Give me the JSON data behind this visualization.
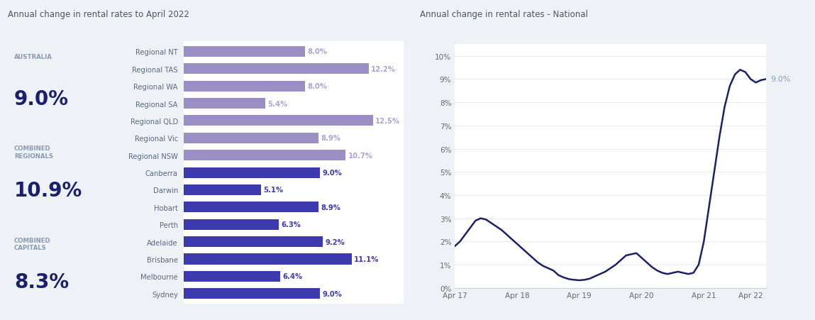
{
  "title_left": "Annual change in rental rates to April 2022",
  "title_right": "Annual change in rental rates - National",
  "bg_color": "#eef2f7",
  "kpi": [
    {
      "label": "AUSTRALIA",
      "value": "9.0%"
    },
    {
      "label": "COMBINED\nREGIONALS",
      "value": "10.9%"
    },
    {
      "label": "COMBINED\nCAPITALS",
      "value": "8.3%"
    }
  ],
  "kpi_label_color": "#8a9bb0",
  "kpi_value_color": "#1a1f6e",
  "bar_categories": [
    "Regional NT",
    "Regional TAS",
    "Regional WA",
    "Regional SA",
    "Regional QLD",
    "Regional Vic",
    "Regional NSW",
    "Canberra",
    "Darwin",
    "Hobart",
    "Perth",
    "Adelaide",
    "Brisbane",
    "Melbourne",
    "Sydney"
  ],
  "bar_values": [
    8.0,
    12.2,
    8.0,
    5.4,
    12.5,
    8.9,
    10.7,
    9.0,
    5.1,
    8.9,
    6.3,
    9.2,
    11.1,
    6.4,
    9.0
  ],
  "bar_colors": [
    "#9b8ec4",
    "#9b8ec4",
    "#9b8ec4",
    "#9b8ec4",
    "#9b8ec4",
    "#9b8ec4",
    "#9b8ec4",
    "#3d3ab0",
    "#3d3ab0",
    "#3d3ab0",
    "#3d3ab0",
    "#3d3ab0",
    "#3d3ab0",
    "#3d3ab0",
    "#3d3ab0"
  ],
  "bar_label_color_regional": "#b0a0d8",
  "bar_label_color_capital": "#3d3ab0",
  "bar_category_color": "#5a6880",
  "line_x": [
    0,
    1,
    2,
    3,
    4,
    5,
    6,
    7,
    8,
    9,
    10,
    11,
    12,
    13,
    14,
    15,
    16,
    17,
    18,
    19,
    20,
    21,
    22,
    23,
    24,
    25,
    26,
    27,
    28,
    29,
    30,
    31,
    32,
    33,
    34,
    35,
    36,
    37,
    38,
    39,
    40,
    41,
    42,
    43,
    44,
    45,
    46,
    47,
    48,
    49,
    50,
    51,
    52,
    53,
    54,
    55,
    56,
    57,
    58,
    59,
    60
  ],
  "line_y": [
    1.8,
    2.0,
    2.3,
    2.6,
    2.9,
    3.0,
    2.95,
    2.8,
    2.65,
    2.5,
    2.3,
    2.1,
    1.9,
    1.7,
    1.5,
    1.3,
    1.1,
    0.95,
    0.85,
    0.75,
    0.55,
    0.45,
    0.38,
    0.35,
    0.33,
    0.35,
    0.4,
    0.5,
    0.6,
    0.7,
    0.85,
    1.0,
    1.2,
    1.4,
    1.45,
    1.5,
    1.3,
    1.1,
    0.9,
    0.75,
    0.65,
    0.6,
    0.65,
    0.7,
    0.65,
    0.6,
    0.65,
    1.0,
    2.0,
    3.5,
    5.0,
    6.5,
    7.8,
    8.7,
    9.2,
    9.4,
    9.3,
    9.0,
    8.85,
    8.95,
    9.0
  ],
  "line_color": "#1a1f6e",
  "line_annotation": "9.0%",
  "line_annotation_color": "#8a9bb0",
  "yticks_line": [
    0,
    1,
    2,
    3,
    4,
    5,
    6,
    7,
    8,
    9,
    10
  ],
  "xtick_labels_line": [
    "Apr 17",
    "Apr 18",
    "Apr 19",
    "Apr 20",
    "Apr 21",
    "Apr 22"
  ],
  "xtick_positions_line": [
    0,
    12,
    24,
    36,
    48,
    57
  ]
}
